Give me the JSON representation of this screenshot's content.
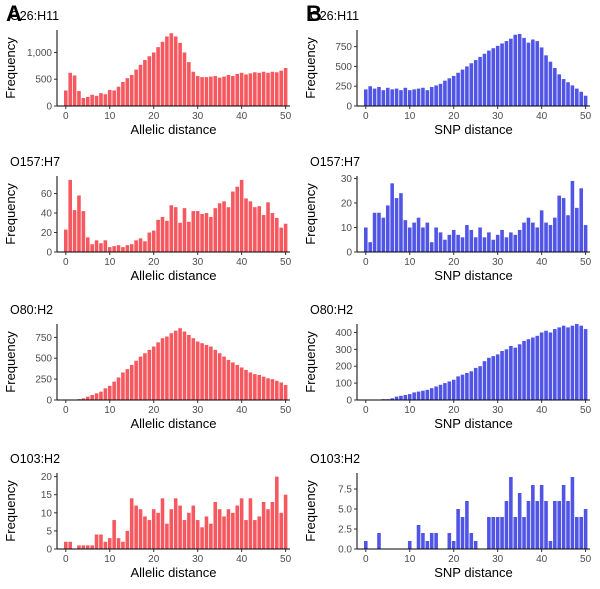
{
  "panel_labels": [
    "A",
    "B"
  ],
  "colors": {
    "allelic_bar": "#f5595f",
    "snp_bar": "#5155e6"
  },
  "chart_data": [
    {
      "type": "bar",
      "panel": "A",
      "title": "O26:H11",
      "xlabel": "Allelic distance",
      "ylabel": "Frequency",
      "xlim": [
        -2,
        51
      ],
      "ylim": [
        0,
        1420
      ],
      "xticks": [
        0,
        10,
        20,
        30,
        40,
        50
      ],
      "xtick_labels": [
        "0",
        "10",
        "20",
        "30",
        "40",
        "50"
      ],
      "yticks": [
        0,
        500,
        1000
      ],
      "ytick_labels": [
        "0",
        "500",
        "1,000"
      ],
      "x": [
        0,
        1,
        2,
        3,
        4,
        5,
        6,
        7,
        8,
        9,
        10,
        11,
        12,
        13,
        14,
        15,
        16,
        17,
        18,
        19,
        20,
        21,
        22,
        23,
        24,
        25,
        26,
        27,
        28,
        29,
        30,
        31,
        32,
        33,
        34,
        35,
        36,
        37,
        38,
        39,
        40,
        41,
        42,
        43,
        44,
        45,
        46,
        47,
        48,
        49,
        50
      ],
      "values": [
        290,
        620,
        570,
        280,
        150,
        170,
        210,
        190,
        240,
        220,
        300,
        290,
        360,
        450,
        520,
        580,
        680,
        770,
        860,
        930,
        1000,
        1100,
        1200,
        1300,
        1360,
        1300,
        1180,
        1000,
        820,
        640,
        560,
        540,
        540,
        550,
        560,
        530,
        550,
        580,
        560,
        600,
        620,
        590,
        610,
        630,
        620,
        640,
        620,
        640,
        630,
        660,
        710
      ]
    },
    {
      "type": "bar",
      "panel": "B",
      "title": "O26:H11",
      "xlabel": "SNP distance",
      "ylabel": "Frequency",
      "xlim": [
        -2,
        51
      ],
      "ylim": [
        0,
        960
      ],
      "xticks": [
        0,
        10,
        20,
        30,
        40,
        50
      ],
      "xtick_labels": [
        "0",
        "10",
        "20",
        "30",
        "40",
        "50"
      ],
      "yticks": [
        0,
        250,
        500,
        750
      ],
      "ytick_labels": [
        "0",
        "250",
        "500",
        "750"
      ],
      "x": [
        0,
        1,
        2,
        3,
        4,
        5,
        6,
        7,
        8,
        9,
        10,
        11,
        12,
        13,
        14,
        15,
        16,
        17,
        18,
        19,
        20,
        21,
        22,
        23,
        24,
        25,
        26,
        27,
        28,
        29,
        30,
        31,
        32,
        33,
        34,
        35,
        36,
        37,
        38,
        39,
        40,
        41,
        42,
        43,
        44,
        45,
        46,
        47,
        48,
        49,
        50
      ],
      "values": [
        210,
        250,
        220,
        240,
        200,
        230,
        210,
        220,
        200,
        230,
        200,
        210,
        220,
        230,
        200,
        240,
        260,
        280,
        320,
        350,
        380,
        420,
        460,
        500,
        540,
        580,
        620,
        660,
        700,
        730,
        760,
        790,
        820,
        850,
        900,
        910,
        860,
        800,
        840,
        820,
        740,
        640,
        560,
        480,
        400,
        340,
        300,
        260,
        220,
        180,
        130
      ]
    },
    {
      "type": "bar",
      "panel": "A",
      "title": "O157:H7",
      "xlabel": "Allelic distance",
      "ylabel": "Frequency",
      "xlim": [
        -2,
        51
      ],
      "ylim": [
        0,
        78
      ],
      "xticks": [
        0,
        10,
        20,
        30,
        40,
        50
      ],
      "xtick_labels": [
        "0",
        "10",
        "20",
        "30",
        "40",
        "50"
      ],
      "yticks": [
        0,
        20,
        40,
        60
      ],
      "ytick_labels": [
        "0",
        "20",
        "40",
        "60"
      ],
      "x": [
        0,
        1,
        2,
        3,
        4,
        5,
        6,
        7,
        8,
        9,
        10,
        11,
        12,
        13,
        14,
        15,
        16,
        17,
        18,
        19,
        20,
        21,
        22,
        23,
        24,
        25,
        26,
        27,
        28,
        29,
        30,
        31,
        32,
        33,
        34,
        35,
        36,
        37,
        38,
        39,
        40,
        41,
        42,
        43,
        44,
        45,
        46,
        47,
        48,
        49,
        50
      ],
      "values": [
        23,
        74,
        43,
        58,
        42,
        15,
        8,
        12,
        9,
        12,
        5,
        6,
        7,
        5,
        7,
        8,
        12,
        14,
        11,
        20,
        22,
        33,
        36,
        32,
        48,
        46,
        30,
        45,
        31,
        42,
        42,
        39,
        40,
        36,
        45,
        50,
        52,
        46,
        62,
        67,
        74,
        55,
        52,
        46,
        47,
        38,
        51,
        40,
        35,
        25,
        29
      ]
    },
    {
      "type": "bar",
      "panel": "B",
      "title": "O157:H7",
      "xlabel": "SNP distance",
      "ylabel": "Frequency",
      "xlim": [
        -2,
        51
      ],
      "ylim": [
        0,
        31
      ],
      "xticks": [
        0,
        10,
        20,
        30,
        40,
        50
      ],
      "xtick_labels": [
        "0",
        "10",
        "20",
        "30",
        "40",
        "50"
      ],
      "yticks": [
        0,
        10,
        20,
        30
      ],
      "ytick_labels": [
        "0",
        "10",
        "20",
        "30"
      ],
      "x": [
        0,
        1,
        2,
        3,
        4,
        5,
        6,
        7,
        8,
        9,
        10,
        11,
        12,
        13,
        14,
        15,
        16,
        17,
        18,
        19,
        20,
        21,
        22,
        23,
        24,
        25,
        26,
        27,
        28,
        29,
        30,
        31,
        32,
        33,
        34,
        35,
        36,
        37,
        38,
        39,
        40,
        41,
        42,
        43,
        44,
        45,
        46,
        47,
        48,
        49,
        50
      ],
      "values": [
        10,
        4,
        16,
        16,
        14,
        19,
        28,
        22,
        24,
        13,
        10,
        12,
        14,
        10,
        12,
        4,
        10,
        8,
        5,
        7,
        9,
        7,
        6,
        11,
        9,
        6,
        10,
        6,
        8,
        5,
        7,
        9,
        6,
        8,
        7,
        9,
        12,
        14,
        12,
        10,
        17,
        12,
        11,
        14,
        23,
        22,
        15,
        29,
        18,
        26,
        11
      ]
    },
    {
      "type": "bar",
      "panel": "A",
      "title": "O80:H2",
      "xlabel": "Allelic distance",
      "ylabel": "Frequency",
      "xlim": [
        -2,
        51
      ],
      "ylim": [
        0,
        910
      ],
      "xticks": [
        0,
        10,
        20,
        30,
        40,
        50
      ],
      "xtick_labels": [
        "0",
        "10",
        "20",
        "30",
        "40",
        "50"
      ],
      "yticks": [
        0,
        250,
        500,
        750
      ],
      "ytick_labels": [
        "0",
        "250",
        "500",
        "750"
      ],
      "x": [
        0,
        1,
        2,
        3,
        4,
        5,
        6,
        7,
        8,
        9,
        10,
        11,
        12,
        13,
        14,
        15,
        16,
        17,
        18,
        19,
        20,
        21,
        22,
        23,
        24,
        25,
        26,
        27,
        28,
        29,
        30,
        31,
        32,
        33,
        34,
        35,
        36,
        37,
        38,
        39,
        40,
        41,
        42,
        43,
        44,
        45,
        46,
        47,
        48,
        49,
        50
      ],
      "values": [
        0,
        0,
        5,
        10,
        20,
        40,
        60,
        80,
        100,
        140,
        170,
        220,
        270,
        330,
        370,
        420,
        470,
        520,
        560,
        600,
        640,
        690,
        740,
        760,
        800,
        830,
        860,
        820,
        780,
        740,
        700,
        680,
        660,
        640,
        600,
        560,
        520,
        480,
        450,
        420,
        390,
        360,
        330,
        310,
        300,
        280,
        260,
        250,
        230,
        210,
        180
      ]
    },
    {
      "type": "bar",
      "panel": "B",
      "title": "O80:H2",
      "xlabel": "SNP distance",
      "ylabel": "Frequency",
      "xlim": [
        -2,
        51
      ],
      "ylim": [
        0,
        450
      ],
      "xticks": [
        0,
        10,
        20,
        30,
        40,
        50
      ],
      "xtick_labels": [
        "0",
        "10",
        "20",
        "30",
        "40",
        "50"
      ],
      "yticks": [
        0,
        100,
        200,
        300,
        400
      ],
      "ytick_labels": [
        "0",
        "100",
        "200",
        "300",
        "400"
      ],
      "x": [
        0,
        1,
        2,
        3,
        4,
        5,
        6,
        7,
        8,
        9,
        10,
        11,
        12,
        13,
        14,
        15,
        16,
        17,
        18,
        19,
        20,
        21,
        22,
        23,
        24,
        25,
        26,
        27,
        28,
        29,
        30,
        31,
        32,
        33,
        34,
        35,
        36,
        37,
        38,
        39,
        40,
        41,
        42,
        43,
        44,
        45,
        46,
        47,
        48,
        49,
        50
      ],
      "values": [
        0,
        0,
        0,
        0,
        5,
        5,
        10,
        20,
        25,
        30,
        35,
        45,
        50,
        55,
        60,
        70,
        80,
        90,
        100,
        110,
        120,
        140,
        150,
        160,
        170,
        190,
        200,
        230,
        250,
        260,
        270,
        290,
        300,
        320,
        310,
        330,
        350,
        360,
        370,
        380,
        400,
        410,
        400,
        420,
        430,
        440,
        430,
        440,
        450,
        440,
        420
      ]
    },
    {
      "type": "bar",
      "panel": "A",
      "title": "O103:H2",
      "xlabel": "Allelic distance",
      "ylabel": "Frequency",
      "xlim": [
        -2,
        51
      ],
      "ylim": [
        0,
        21
      ],
      "xticks": [
        0,
        10,
        20,
        30,
        40,
        50
      ],
      "xtick_labels": [
        "0",
        "10",
        "20",
        "30",
        "40",
        "50"
      ],
      "yticks": [
        0,
        5,
        10,
        15,
        20
      ],
      "ytick_labels": [
        "0",
        "5",
        "10",
        "15",
        "20"
      ],
      "x": [
        0,
        1,
        2,
        3,
        4,
        5,
        6,
        7,
        8,
        9,
        10,
        11,
        12,
        13,
        14,
        15,
        16,
        17,
        18,
        19,
        20,
        21,
        22,
        23,
        24,
        25,
        26,
        27,
        28,
        29,
        30,
        31,
        32,
        33,
        34,
        35,
        36,
        37,
        38,
        39,
        40,
        41,
        42,
        43,
        44,
        45,
        46,
        47,
        48,
        49,
        50
      ],
      "values": [
        2,
        2,
        0,
        1,
        1,
        1,
        1,
        4,
        4,
        2,
        3,
        8,
        3,
        2,
        5,
        14,
        12,
        11,
        9,
        8,
        11,
        10,
        14,
        7,
        11,
        14,
        12,
        8,
        10,
        12,
        8,
        6,
        9,
        7,
        13,
        11,
        9,
        11,
        10,
        12,
        14,
        8,
        14,
        8,
        9,
        13,
        11,
        13,
        20,
        10,
        15
      ]
    },
    {
      "type": "bar",
      "panel": "B",
      "title": "O103:H2",
      "xlabel": "SNP distance",
      "ylabel": "Frequency",
      "xlim": [
        -2,
        51
      ],
      "ylim": [
        0,
        9.5
      ],
      "xticks": [
        0,
        10,
        20,
        30,
        40,
        50
      ],
      "xtick_labels": [
        "0",
        "10",
        "20",
        "30",
        "40",
        "50"
      ],
      "yticks": [
        0,
        2.5,
        5,
        7.5
      ],
      "ytick_labels": [
        "0.0",
        "2.5",
        "5.0",
        "7.5"
      ],
      "x": [
        0,
        1,
        2,
        3,
        4,
        5,
        6,
        7,
        8,
        9,
        10,
        11,
        12,
        13,
        14,
        15,
        16,
        17,
        18,
        19,
        20,
        21,
        22,
        23,
        24,
        25,
        26,
        27,
        28,
        29,
        30,
        31,
        32,
        33,
        34,
        35,
        36,
        37,
        38,
        39,
        40,
        41,
        42,
        43,
        44,
        45,
        46,
        47,
        48,
        49,
        50
      ],
      "values": [
        1,
        0,
        0,
        2,
        0,
        0,
        0,
        0,
        0,
        0,
        1,
        0,
        3,
        2,
        1,
        2,
        2,
        0,
        0,
        2,
        1,
        5,
        4,
        6,
        2,
        1,
        0,
        0,
        4,
        4,
        4,
        4,
        6,
        9,
        4,
        7,
        4,
        6,
        8,
        6,
        8,
        6,
        1,
        6,
        6,
        8,
        6,
        9,
        4,
        4,
        5
      ]
    }
  ]
}
